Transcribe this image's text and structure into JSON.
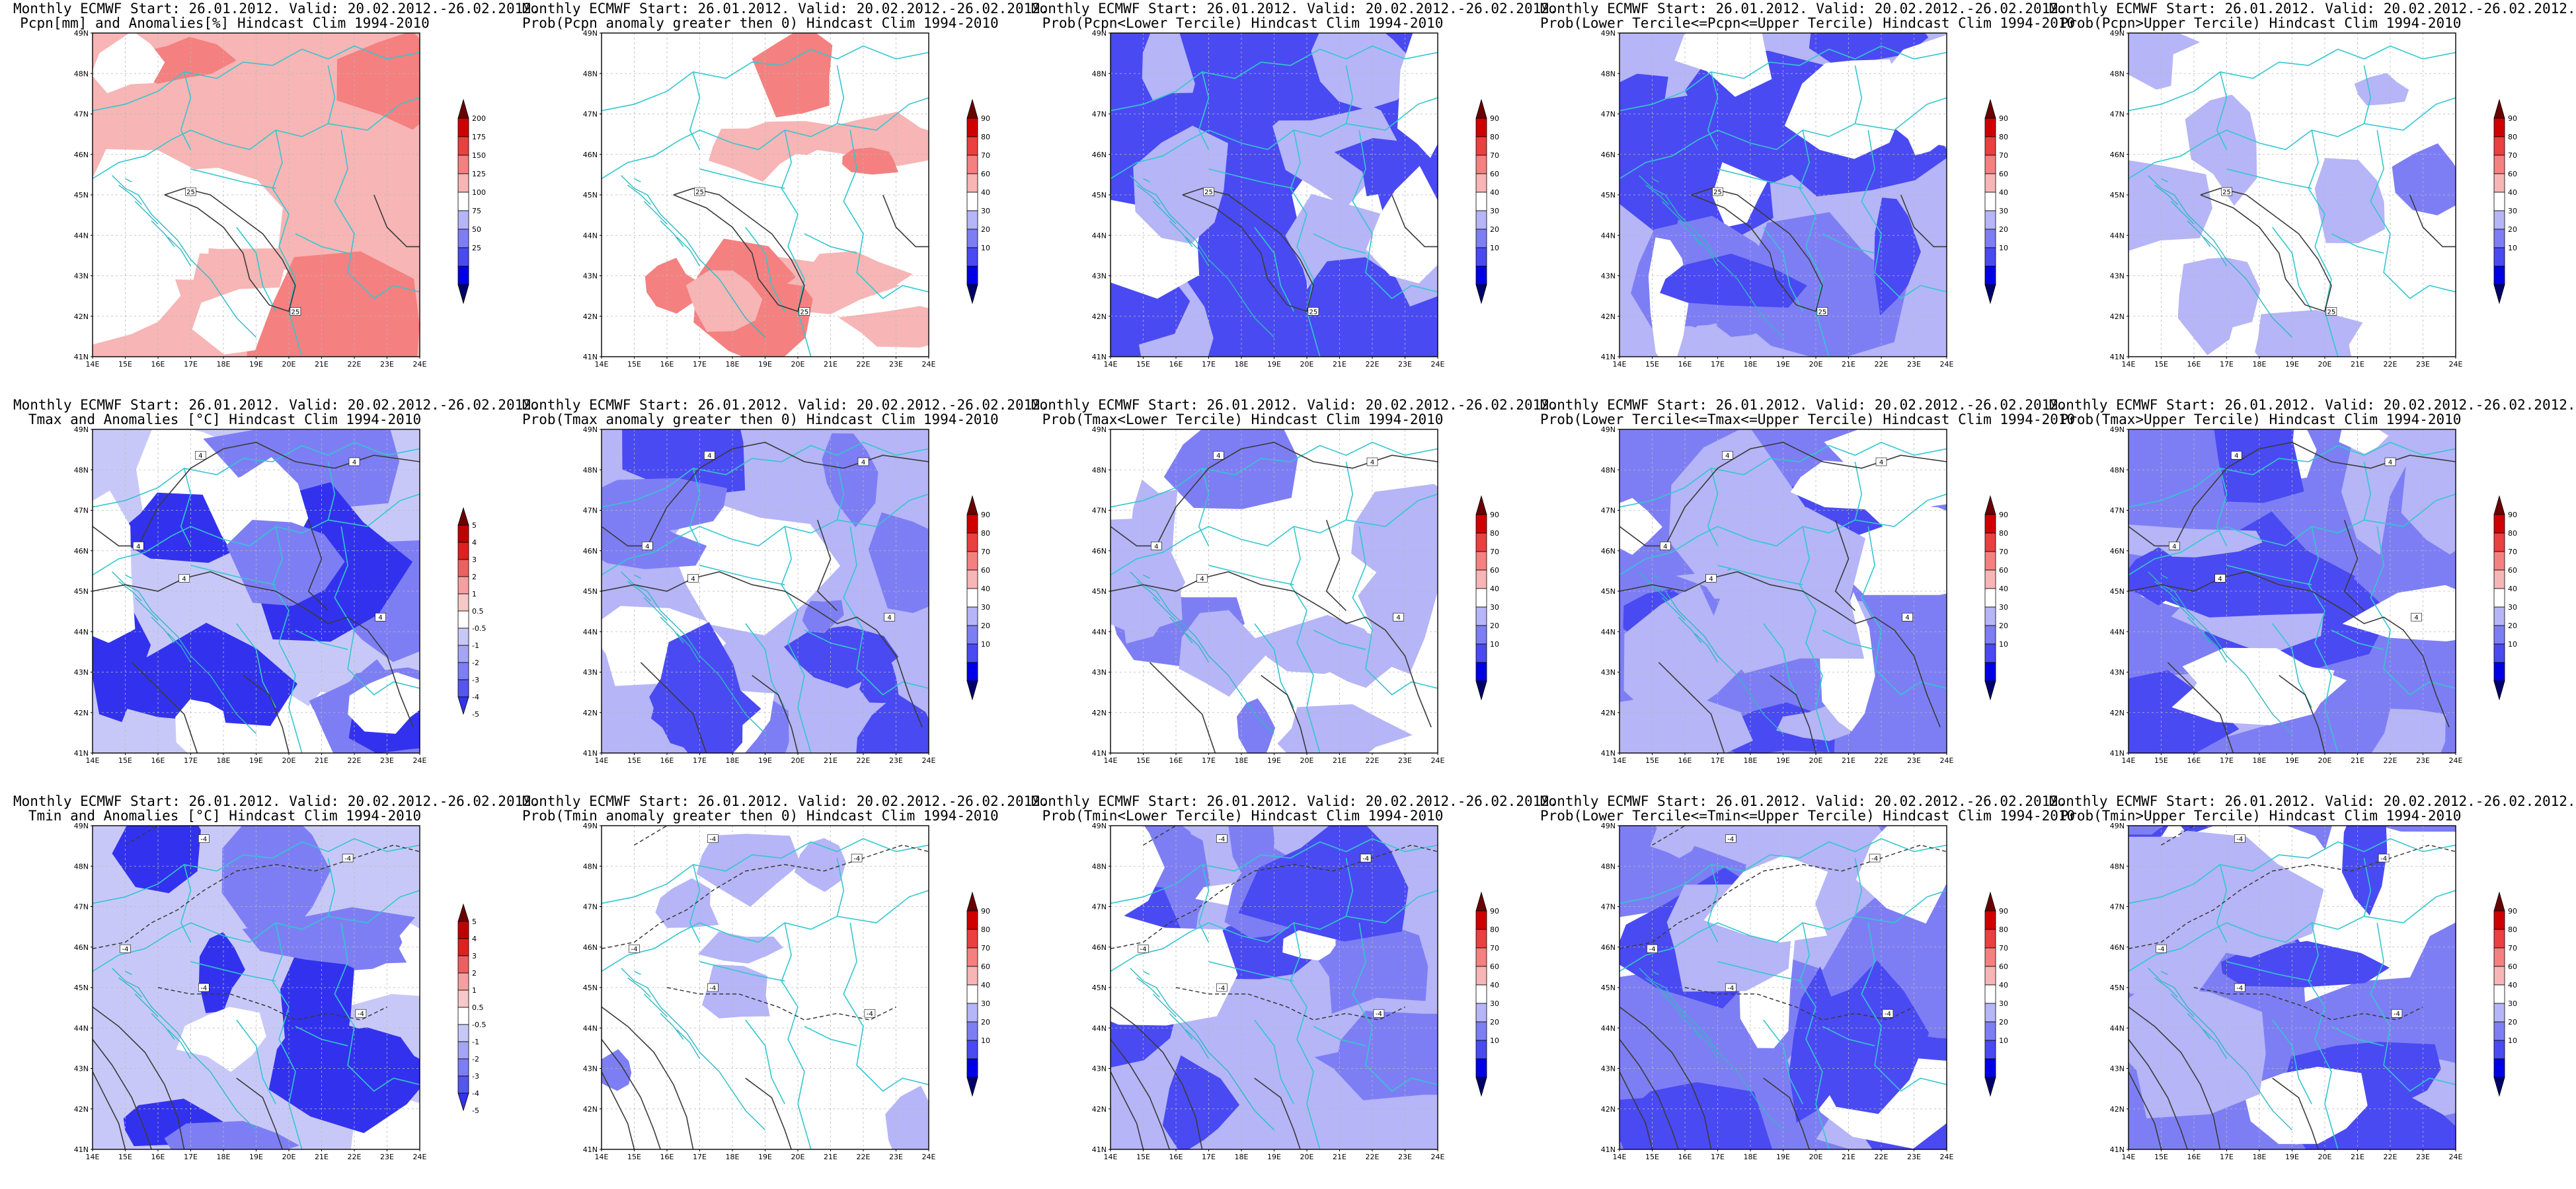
{
  "figure": {
    "panels": [
      {
        "id": "pcpn-anomaly",
        "title_line1": "Monthly ECMWF Start: 26.01.2012. Valid: 20.02.2012.-26.02.2012.",
        "title_line2": "Pcpn[mm] and Anomalies[%] Hindcast Clim 1994-2010",
        "palette": "anomaly",
        "fill_level": 0.55,
        "field": "pcpn",
        "colorbar_labels": [
          "200",
          "175",
          "150",
          "125",
          "100",
          "75",
          "50",
          "25"
        ],
        "contour_labels": [
          "25",
          "25"
        ]
      },
      {
        "id": "pcpn-prob-gt0",
        "title_line1": "Monthly ECMWF Start: 26.01.2012. Valid: 20.02.2012.-26.02.2012.",
        "title_line2": "Prob(Pcpn anomaly greater then 0) Hindcast Clim 1994-2010",
        "palette": "prob",
        "fill_level": 0.35,
        "field": "pcpn",
        "colorbar_labels": [
          "90",
          "80",
          "70",
          "60",
          "40",
          "30",
          "20",
          "10"
        ],
        "contour_labels": [
          "25",
          "25"
        ]
      },
      {
        "id": "pcpn-prob-lower",
        "title_line1": "Monthly ECMWF Start: 26.01.2012. Valid: 20.02.2012.-26.02.2012.",
        "title_line2": "Prob(Pcpn<Lower Tercile) Hindcast Clim 1994-2010",
        "palette": "prob",
        "fill_level": 0.95,
        "field": "pcpn",
        "colorbar_labels": [
          "90",
          "80",
          "70",
          "60",
          "40",
          "30",
          "20",
          "10"
        ],
        "contour_labels": [
          "25",
          "25"
        ]
      },
      {
        "id": "pcpn-prob-middle",
        "title_line1": "Monthly ECMWF Start: 26.01.2012. Valid: 20.02.2012.-26.02.2012.",
        "title_line2": "Prob(Lower Tercile<=Pcpn<=Upper Tercile) Hindcast Clim 1994-2010",
        "palette": "prob",
        "fill_level": 0.75,
        "field": "pcpn",
        "colorbar_labels": [
          "90",
          "80",
          "70",
          "60",
          "40",
          "30",
          "20",
          "10"
        ],
        "contour_labels": [
          "25",
          "25"
        ]
      },
      {
        "id": "pcpn-prob-upper",
        "title_line1": "Monthly ECMWF Start: 26.01.2012. Valid: 20.02.2012.-26.02.2012.",
        "title_line2": "Prob(Pcpn>Upper Tercile) Hindcast Clim 1994-2010",
        "palette": "prob",
        "fill_level": 0.3,
        "field": "pcpn",
        "colorbar_labels": [
          "90",
          "80",
          "70",
          "60",
          "40",
          "30",
          "20",
          "10"
        ],
        "contour_labels": [
          "25",
          "25"
        ]
      },
      {
        "id": "tmax-anomaly",
        "title_line1": "Monthly ECMWF Start: 26.01.2012. Valid: 20.02.2012.-26.02.2012.",
        "title_line2": "Tmax and Anomalies [°C] Hindcast Clim 1994-2010",
        "palette": "temp",
        "fill_level": 0.85,
        "field": "tmax",
        "colorbar_labels": [
          "5",
          "4",
          "3",
          "2",
          "1",
          "0.5",
          "-0.5",
          "-1",
          "-2",
          "-3",
          "-4",
          "-5"
        ],
        "contour_labels": [
          "4",
          "4",
          "4",
          "4",
          "4"
        ]
      },
      {
        "id": "tmax-prob-gt0",
        "title_line1": "Monthly ECMWF Start: 26.01.2012. Valid: 20.02.2012.-26.02.2012.",
        "title_line2": "Prob(Tmax anomaly greater then 0) Hindcast Clim 1994-2010",
        "palette": "prob",
        "fill_level": 0.65,
        "field": "tmax",
        "colorbar_labels": [
          "90",
          "80",
          "70",
          "60",
          "40",
          "30",
          "20",
          "10"
        ],
        "contour_labels": [
          "4",
          "4",
          "4",
          "4",
          "4"
        ]
      },
      {
        "id": "tmax-prob-lower",
        "title_line1": "Monthly ECMWF Start: 26.01.2012. Valid: 20.02.2012.-26.02.2012.",
        "title_line2": "Prob(Tmax<Lower Tercile) Hindcast Clim 1994-2010",
        "palette": "prob",
        "fill_level": 0.4,
        "field": "tmax",
        "colorbar_labels": [
          "90",
          "80",
          "70",
          "60",
          "40",
          "30",
          "20",
          "10"
        ],
        "contour_labels": [
          "4",
          "4",
          "4",
          "4",
          "4"
        ]
      },
      {
        "id": "tmax-prob-middle",
        "title_line1": "Monthly ECMWF Start: 26.01.2012. Valid: 20.02.2012.-26.02.2012.",
        "title_line2": "Prob(Lower Tercile<=Tmax<=Upper Tercile) Hindcast Clim 1994-2010",
        "palette": "prob",
        "fill_level": 0.9,
        "field": "tmax",
        "colorbar_labels": [
          "90",
          "80",
          "70",
          "60",
          "40",
          "30",
          "20",
          "10"
        ],
        "contour_labels": [
          "4",
          "4",
          "4",
          "4",
          "4"
        ]
      },
      {
        "id": "tmax-prob-upper",
        "title_line1": "Monthly ECMWF Start: 26.01.2012. Valid: 20.02.2012.-26.02.2012.",
        "title_line2": "Prob(Tmax>Upper Tercile) Hindcast Clim 1994-2010",
        "palette": "prob",
        "fill_level": 0.92,
        "field": "tmax",
        "colorbar_labels": [
          "90",
          "80",
          "70",
          "60",
          "40",
          "30",
          "20",
          "10"
        ],
        "contour_labels": [
          "4",
          "4",
          "4",
          "4",
          "4"
        ]
      },
      {
        "id": "tmin-anomaly",
        "title_line1": "Monthly ECMWF Start: 26.01.2012. Valid: 20.02.2012.-26.02.2012.",
        "title_line2": "Tmin and Anomalies [°C] Hindcast Clim 1994-2010",
        "palette": "temp",
        "fill_level": 0.6,
        "field": "tmin",
        "colorbar_labels": [
          "5",
          "4",
          "3",
          "2",
          "1",
          "0.5",
          "-0.5",
          "-1",
          "-2",
          "-3",
          "-4",
          "-5"
        ],
        "contour_labels": [
          "-4",
          "-4",
          "-4",
          "-4",
          "-4"
        ]
      },
      {
        "id": "tmin-prob-gt0",
        "title_line1": "Monthly ECMWF Start: 26.01.2012. Valid: 20.02.2012.-26.02.2012.",
        "title_line2": "Prob(Tmin anomaly greater then 0) Hindcast Clim 1994-2010",
        "palette": "prob",
        "fill_level": 0.08,
        "field": "tmin",
        "colorbar_labels": [
          "90",
          "80",
          "70",
          "60",
          "40",
          "30",
          "20",
          "10"
        ],
        "contour_labels": [
          "-4",
          "-4",
          "-4",
          "-4",
          "-4"
        ]
      },
      {
        "id": "tmin-prob-lower",
        "title_line1": "Monthly ECMWF Start: 26.01.2012. Valid: 20.02.2012.-26.02.2012.",
        "title_line2": "Prob(Tmin<Lower Tercile) Hindcast Clim 1994-2010",
        "palette": "prob",
        "fill_level": 0.7,
        "field": "tmin",
        "colorbar_labels": [
          "90",
          "80",
          "70",
          "60",
          "40",
          "30",
          "20",
          "10"
        ],
        "contour_labels": [
          "-4",
          "-4",
          "-4",
          "-4",
          "-4"
        ]
      },
      {
        "id": "tmin-prob-middle",
        "title_line1": "Monthly ECMWF Start: 26.01.2012. Valid: 20.02.2012.-26.02.2012.",
        "title_line2": "Prob(Lower Tercile<=Tmin<=Upper Tercile) Hindcast Clim 1994-2010",
        "palette": "prob",
        "fill_level": 0.88,
        "field": "tmin",
        "colorbar_labels": [
          "90",
          "80",
          "70",
          "60",
          "40",
          "30",
          "20",
          "10"
        ],
        "contour_labels": [
          "-4",
          "-4",
          "-4",
          "-4",
          "-4"
        ]
      },
      {
        "id": "tmin-prob-upper",
        "title_line1": "Monthly ECMWF Start: 26.01.2012. Valid: 20.02.2012.-26.02.2012.",
        "title_line2": "Prob(Tmin>Upper Tercile) Hindcast Clim 1994-2010",
        "palette": "prob",
        "fill_level": 0.9,
        "field": "tmin",
        "colorbar_labels": [
          "90",
          "80",
          "70",
          "60",
          "40",
          "30",
          "20",
          "10"
        ],
        "contour_labels": [
          "-4",
          "-4",
          "-4",
          "-4",
          "-4"
        ]
      }
    ],
    "lat_labels": [
      "49N",
      "48N",
      "47N",
      "46N",
      "45N",
      "44N",
      "43N",
      "42N",
      "41N"
    ],
    "lon_labels": [
      "14E",
      "15E",
      "16E",
      "17E",
      "18E",
      "19E",
      "20E",
      "21E",
      "22E",
      "23E",
      "24E"
    ],
    "colors": {
      "prob": [
        "#00006a",
        "#0000e6",
        "#4a4af2",
        "#7e7ef4",
        "#b5b5f7",
        "#ffffff",
        "#f7b5b5",
        "#f48080",
        "#ea4040",
        "#d00000",
        "#6a0000"
      ],
      "anomaly": [
        "#00006a",
        "#0000e6",
        "#4a4af2",
        "#7e7ef4",
        "#b5b5f7",
        "#ffffff",
        "#f7b5b5",
        "#f48080",
        "#ea4040",
        "#d00000",
        "#6a0000"
      ],
      "temp": [
        "#00006a",
        "#0000e6",
        "#3232ee",
        "#5555f0",
        "#7e7ef4",
        "#a5a5f6",
        "#c8c8f8",
        "#ffffff",
        "#f7c8c8",
        "#f4a0a0",
        "#ee6060",
        "#e02020",
        "#c00000",
        "#6a0000"
      ],
      "borders": "#33c7cf",
      "contours": "#3a3a3a"
    }
  }
}
